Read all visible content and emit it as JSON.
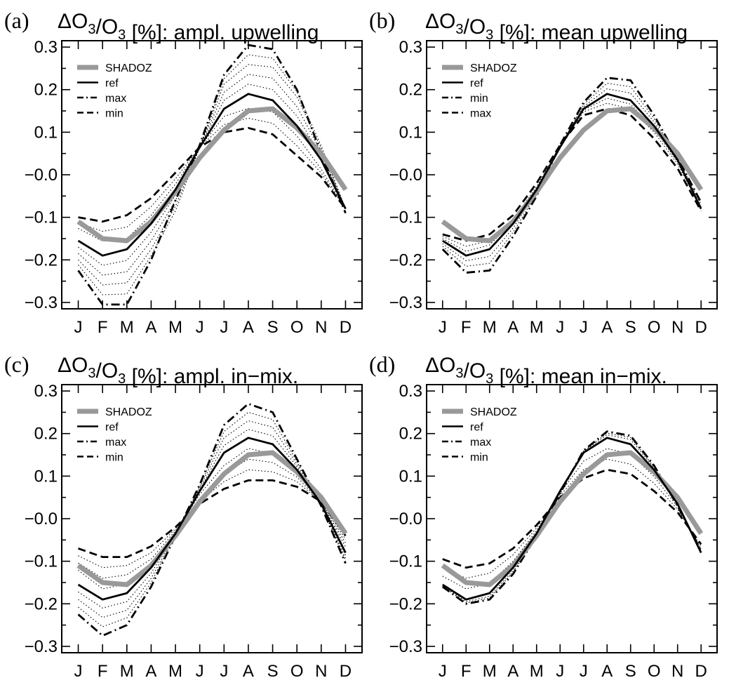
{
  "chart_data": [
    {
      "type": "line",
      "panel_label": "(a)",
      "title_prefix": "ΔO",
      "title_sub1": "3",
      "title_mid": "/O",
      "title_sub2": "3",
      "title_suffix": " [%]: ampl. upwelling",
      "categories": [
        "J",
        "F",
        "M",
        "A",
        "M",
        "J",
        "J",
        "A",
        "S",
        "O",
        "N",
        "D"
      ],
      "ylim": [
        -0.315,
        0.315
      ],
      "yticks": [
        -0.3,
        -0.2,
        -0.1,
        0.0,
        0.1,
        0.2,
        0.3
      ],
      "ytick_labels": [
        "−0.3",
        "−0.2",
        "−0.1",
        "−0.0",
        "0.1",
        "0.2",
        "0.3"
      ],
      "series": [
        {
          "name": "SHADOZ",
          "style": "shadoz",
          "values": [
            -0.11,
            -0.15,
            -0.155,
            -0.11,
            -0.04,
            0.04,
            0.105,
            0.15,
            0.155,
            0.11,
            0.05,
            -0.035
          ]
        },
        {
          "name": "ref",
          "style": "solid",
          "values": [
            -0.155,
            -0.19,
            -0.175,
            -0.115,
            -0.035,
            0.065,
            0.155,
            0.19,
            0.175,
            0.115,
            0.035,
            -0.08
          ]
        },
        {
          "name": "max",
          "style": "dashdot",
          "values": [
            -0.225,
            -0.305,
            -0.305,
            -0.2,
            -0.06,
            0.07,
            0.235,
            0.305,
            0.295,
            0.2,
            0.05,
            -0.09
          ]
        },
        {
          "name": "min",
          "style": "dashed",
          "values": [
            -0.1,
            -0.11,
            -0.095,
            -0.055,
            0.005,
            0.065,
            0.1,
            0.11,
            0.095,
            0.045,
            -0.005,
            -0.08
          ]
        }
      ],
      "intermediate": [
        [
          -0.113,
          -0.133,
          -0.123,
          -0.075,
          -0.009,
          0.065,
          0.118,
          0.133,
          0.121,
          0.068,
          0.004,
          -0.08
        ],
        [
          -0.126,
          -0.156,
          -0.15,
          -0.095,
          -0.022,
          0.065,
          0.137,
          0.156,
          0.148,
          0.091,
          0.013,
          -0.08
        ],
        [
          -0.17,
          -0.213,
          -0.201,
          -0.135,
          -0.048,
          0.065,
          0.175,
          0.213,
          0.2,
          0.138,
          0.044,
          -0.08
        ],
        [
          -0.185,
          -0.236,
          -0.228,
          -0.155,
          -0.061,
          0.065,
          0.194,
          0.236,
          0.227,
          0.16,
          0.053,
          -0.08
        ],
        [
          -0.2,
          -0.259,
          -0.254,
          -0.175,
          -0.074,
          0.065,
          0.213,
          0.259,
          0.253,
          0.183,
          0.062,
          -0.08
        ],
        [
          -0.212,
          -0.282,
          -0.28,
          -0.19,
          -0.085,
          0.065,
          0.226,
          0.282,
          0.274,
          0.195,
          0.068,
          -0.08
        ]
      ],
      "legend_entries": [
        [
          "SHADOZ",
          "shadoz"
        ],
        [
          "ref",
          "solid"
        ],
        [
          "max",
          "dashdot"
        ],
        [
          "min",
          "dashed"
        ]
      ]
    },
    {
      "type": "line",
      "panel_label": "(b)",
      "title_prefix": "ΔO",
      "title_sub1": "3",
      "title_mid": "/O",
      "title_sub2": "3",
      "title_suffix": " [%]: mean upwelling",
      "categories": [
        "J",
        "F",
        "M",
        "A",
        "M",
        "J",
        "J",
        "A",
        "S",
        "O",
        "N",
        "D"
      ],
      "ylim": [
        -0.315,
        0.315
      ],
      "yticks": [
        -0.3,
        -0.2,
        -0.1,
        0.0,
        0.1,
        0.2,
        0.3
      ],
      "ytick_labels": [
        "−0.3",
        "−0.2",
        "−0.1",
        "−0.0",
        "0.1",
        "0.2",
        "0.3"
      ],
      "series": [
        {
          "name": "SHADOZ",
          "style": "shadoz",
          "values": [
            -0.11,
            -0.15,
            -0.155,
            -0.11,
            -0.04,
            0.04,
            0.105,
            0.15,
            0.155,
            0.11,
            0.05,
            -0.035
          ]
        },
        {
          "name": "ref",
          "style": "solid",
          "values": [
            -0.155,
            -0.19,
            -0.175,
            -0.115,
            -0.035,
            0.065,
            0.155,
            0.19,
            0.175,
            0.115,
            0.035,
            -0.08
          ]
        },
        {
          "name": "min",
          "style": "dashdot",
          "values": [
            -0.175,
            -0.23,
            -0.225,
            -0.145,
            -0.05,
            0.07,
            0.17,
            0.228,
            0.222,
            0.14,
            0.04,
            -0.065
          ]
        },
        {
          "name": "max",
          "style": "dashed",
          "values": [
            -0.14,
            -0.155,
            -0.14,
            -0.095,
            -0.02,
            0.07,
            0.14,
            0.155,
            0.14,
            0.085,
            0.015,
            -0.085
          ]
        }
      ],
      "intermediate": [
        [
          -0.145,
          -0.168,
          -0.155,
          -0.105,
          -0.028,
          0.068,
          0.148,
          0.168,
          0.155,
          0.1,
          0.025,
          -0.078
        ],
        [
          -0.15,
          -0.18,
          -0.165,
          -0.11,
          -0.032,
          0.066,
          0.152,
          0.18,
          0.166,
          0.108,
          0.03,
          -0.079
        ],
        [
          -0.162,
          -0.202,
          -0.192,
          -0.125,
          -0.04,
          0.067,
          0.16,
          0.202,
          0.192,
          0.124,
          0.037,
          -0.075
        ],
        [
          -0.168,
          -0.215,
          -0.208,
          -0.135,
          -0.045,
          0.068,
          0.165,
          0.215,
          0.207,
          0.132,
          0.039,
          -0.07
        ]
      ],
      "legend_entries": [
        [
          "SHADOZ",
          "shadoz"
        ],
        [
          "ref",
          "solid"
        ],
        [
          "min",
          "dashdot"
        ],
        [
          "max",
          "dashed"
        ]
      ]
    },
    {
      "type": "line",
      "panel_label": "(c)",
      "title_prefix": "ΔO",
      "title_sub1": "3",
      "title_mid": "/O",
      "title_sub2": "3",
      "title_suffix": " [%]: ampl. in−mix.",
      "categories": [
        "J",
        "F",
        "M",
        "A",
        "M",
        "J",
        "J",
        "A",
        "S",
        "O",
        "N",
        "D"
      ],
      "ylim": [
        -0.315,
        0.315
      ],
      "yticks": [
        -0.3,
        -0.2,
        -0.1,
        0.0,
        0.1,
        0.2,
        0.3
      ],
      "ytick_labels": [
        "−0.3",
        "−0.2",
        "−0.1",
        "−0.0",
        "0.1",
        "0.2",
        "0.3"
      ],
      "series": [
        {
          "name": "SHADOZ",
          "style": "shadoz",
          "values": [
            -0.11,
            -0.15,
            -0.155,
            -0.11,
            -0.04,
            0.04,
            0.105,
            0.15,
            0.155,
            0.11,
            0.05,
            -0.035
          ]
        },
        {
          "name": "ref",
          "style": "solid",
          "values": [
            -0.155,
            -0.19,
            -0.175,
            -0.115,
            -0.035,
            0.065,
            0.155,
            0.19,
            0.175,
            0.115,
            0.035,
            -0.08
          ]
        },
        {
          "name": "max",
          "style": "dashdot",
          "values": [
            -0.225,
            -0.275,
            -0.25,
            -0.16,
            -0.04,
            0.08,
            0.22,
            0.27,
            0.25,
            0.14,
            0.03,
            -0.105
          ]
        },
        {
          "name": "min",
          "style": "dashed",
          "values": [
            -0.07,
            -0.09,
            -0.09,
            -0.065,
            -0.02,
            0.035,
            0.07,
            0.09,
            0.09,
            0.075,
            0.04,
            -0.04
          ]
        }
      ],
      "intermediate": [
        [
          -0.087,
          -0.115,
          -0.11,
          -0.08,
          -0.024,
          0.041,
          0.087,
          0.115,
          0.11,
          0.087,
          0.039,
          -0.049
        ],
        [
          -0.104,
          -0.14,
          -0.132,
          -0.095,
          -0.028,
          0.048,
          0.105,
          0.14,
          0.132,
          0.098,
          0.037,
          -0.057
        ],
        [
          -0.121,
          -0.165,
          -0.153,
          -0.105,
          -0.031,
          0.057,
          0.125,
          0.165,
          0.153,
          0.107,
          0.036,
          -0.066
        ],
        [
          -0.172,
          -0.21,
          -0.195,
          -0.128,
          -0.036,
          0.068,
          0.172,
          0.21,
          0.195,
          0.122,
          0.034,
          -0.086
        ],
        [
          -0.19,
          -0.232,
          -0.215,
          -0.14,
          -0.037,
          0.072,
          0.19,
          0.23,
          0.215,
          0.128,
          0.033,
          -0.093
        ],
        [
          -0.208,
          -0.254,
          -0.233,
          -0.15,
          -0.039,
          0.076,
          0.205,
          0.25,
          0.233,
          0.134,
          0.031,
          -0.099
        ]
      ],
      "legend_entries": [
        [
          "SHADOZ",
          "shadoz"
        ],
        [
          "ref",
          "solid"
        ],
        [
          "max",
          "dashdot"
        ],
        [
          "min",
          "dashed"
        ]
      ]
    },
    {
      "type": "line",
      "panel_label": "(d)",
      "title_prefix": "ΔO",
      "title_sub1": "3",
      "title_mid": "/O",
      "title_sub2": "3",
      "title_suffix": " [%]: mean in−mix.",
      "categories": [
        "J",
        "F",
        "M",
        "A",
        "M",
        "J",
        "J",
        "A",
        "S",
        "O",
        "N",
        "D"
      ],
      "ylim": [
        -0.315,
        0.315
      ],
      "yticks": [
        -0.3,
        -0.2,
        -0.1,
        0.0,
        0.1,
        0.2,
        0.3
      ],
      "ytick_labels": [
        "−0.3",
        "−0.2",
        "−0.1",
        "−0.0",
        "0.1",
        "0.2",
        "0.3"
      ],
      "series": [
        {
          "name": "SHADOZ",
          "style": "shadoz",
          "values": [
            -0.11,
            -0.15,
            -0.155,
            -0.11,
            -0.04,
            0.04,
            0.105,
            0.15,
            0.155,
            0.11,
            0.05,
            -0.035
          ]
        },
        {
          "name": "ref",
          "style": "solid",
          "values": [
            -0.155,
            -0.19,
            -0.175,
            -0.115,
            -0.035,
            0.065,
            0.155,
            0.19,
            0.175,
            0.115,
            0.035,
            -0.08
          ]
        },
        {
          "name": "max",
          "style": "dashdot",
          "values": [
            -0.16,
            -0.2,
            -0.19,
            -0.13,
            -0.04,
            0.06,
            0.16,
            0.205,
            0.195,
            0.125,
            0.03,
            -0.075
          ]
        },
        {
          "name": "min",
          "style": "dashed",
          "values": [
            -0.095,
            -0.115,
            -0.105,
            -0.07,
            -0.015,
            0.05,
            0.095,
            0.115,
            0.105,
            0.065,
            0.015,
            -0.06
          ]
        }
      ],
      "intermediate": [
        [
          -0.115,
          -0.14,
          -0.128,
          -0.085,
          -0.022,
          0.055,
          0.115,
          0.14,
          0.128,
          0.083,
          0.022,
          -0.066
        ],
        [
          -0.135,
          -0.165,
          -0.152,
          -0.1,
          -0.028,
          0.06,
          0.135,
          0.165,
          0.152,
          0.099,
          0.028,
          -0.072
        ],
        [
          -0.158,
          -0.195,
          -0.182,
          -0.122,
          -0.038,
          0.064,
          0.158,
          0.197,
          0.186,
          0.12,
          0.033,
          -0.078
        ],
        [
          -0.158,
          -0.198,
          -0.186,
          -0.126,
          -0.039,
          0.062,
          0.159,
          0.201,
          0.191,
          0.122,
          0.031,
          -0.076
        ]
      ],
      "legend_entries": [
        [
          "SHADOZ",
          "shadoz"
        ],
        [
          "ref",
          "solid"
        ],
        [
          "max",
          "dashdot"
        ],
        [
          "min",
          "dashed"
        ]
      ]
    }
  ]
}
